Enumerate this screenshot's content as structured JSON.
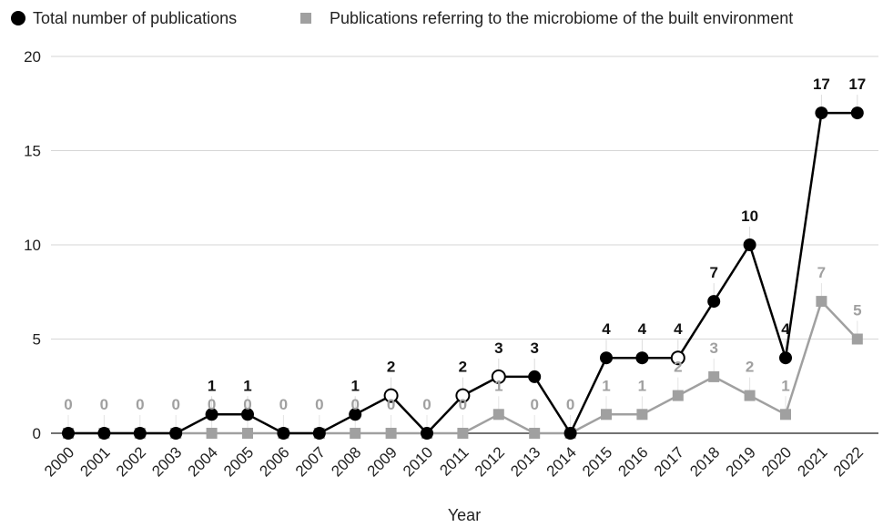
{
  "chart_data": {
    "type": "line",
    "title": "",
    "xlabel": "Year",
    "ylabel": "",
    "ylim": [
      0,
      20
    ],
    "yticks": [
      "0",
      "5",
      "10",
      "15",
      "20"
    ],
    "grid": "horizontal",
    "legend_position": "top",
    "x": [
      "2000",
      "2001",
      "2002",
      "2003",
      "2004",
      "2005",
      "2006",
      "2007",
      "2008",
      "2009",
      "2010",
      "2011",
      "2012",
      "2013",
      "2014",
      "2015",
      "2016",
      "2017",
      "2018",
      "2019",
      "2020",
      "2021",
      "2022"
    ],
    "series": [
      {
        "name": "Total number of publications",
        "color": "#000000",
        "marker": "circle",
        "values": [
          0,
          0,
          0,
          0,
          1,
          1,
          0,
          0,
          1,
          2,
          0,
          2,
          3,
          3,
          0,
          4,
          4,
          4,
          7,
          10,
          4,
          17,
          17
        ],
        "labels": [
          "",
          "",
          "",
          "",
          "1",
          "1",
          "",
          "",
          "1",
          "2",
          "",
          "2",
          "3",
          "3",
          "",
          "4",
          "4",
          "4",
          "7",
          "10",
          "4",
          "17",
          "17"
        ]
      },
      {
        "name": "Publications referring to the microbiome of the built environment",
        "color": "#a0a0a0",
        "marker": "square",
        "values": [
          0,
          0,
          0,
          0,
          0,
          0,
          0,
          0,
          0,
          0,
          0,
          0,
          1,
          0,
          0,
          1,
          1,
          2,
          3,
          2,
          1,
          7,
          5
        ],
        "labels": [
          "0",
          "0",
          "0",
          "0",
          "0",
          "0",
          "0",
          "0",
          "0",
          "0",
          "0",
          "0",
          "1",
          "0",
          "0",
          "1",
          "1",
          "2",
          "3",
          "2",
          "1",
          "7",
          "5"
        ]
      }
    ]
  }
}
